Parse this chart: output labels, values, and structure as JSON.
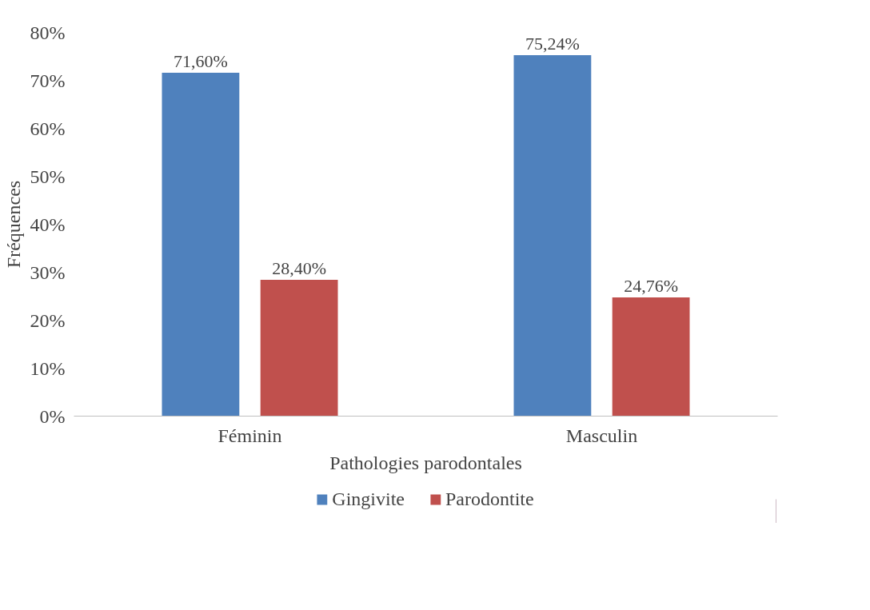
{
  "chart_data": {
    "type": "bar",
    "xlabel": "Pathologies parodontales",
    "ylabel": "Fréquences",
    "categories": [
      "Féminin",
      "Masculin"
    ],
    "series": [
      {
        "name": "Gingivite",
        "color": "#4f81bd",
        "values": [
          71.6,
          75.24
        ],
        "value_labels": [
          "71,60%",
          "75,24%"
        ]
      },
      {
        "name": "Parodontite",
        "color": "#c0504d",
        "values": [
          28.4,
          24.76
        ],
        "value_labels": [
          "28,40%",
          "24,76%"
        ]
      }
    ],
    "ylim": [
      0,
      80
    ],
    "yticks": [
      {
        "value": 0,
        "label": "0%"
      },
      {
        "value": 10,
        "label": "10%"
      },
      {
        "value": 20,
        "label": "20%"
      },
      {
        "value": 30,
        "label": "30%"
      },
      {
        "value": 40,
        "label": "40%"
      },
      {
        "value": 50,
        "label": "50%"
      },
      {
        "value": 60,
        "label": "60%"
      },
      {
        "value": 70,
        "label": "70%"
      },
      {
        "value": 80,
        "label": "80%"
      }
    ],
    "grid": false,
    "legend": "bottom"
  }
}
